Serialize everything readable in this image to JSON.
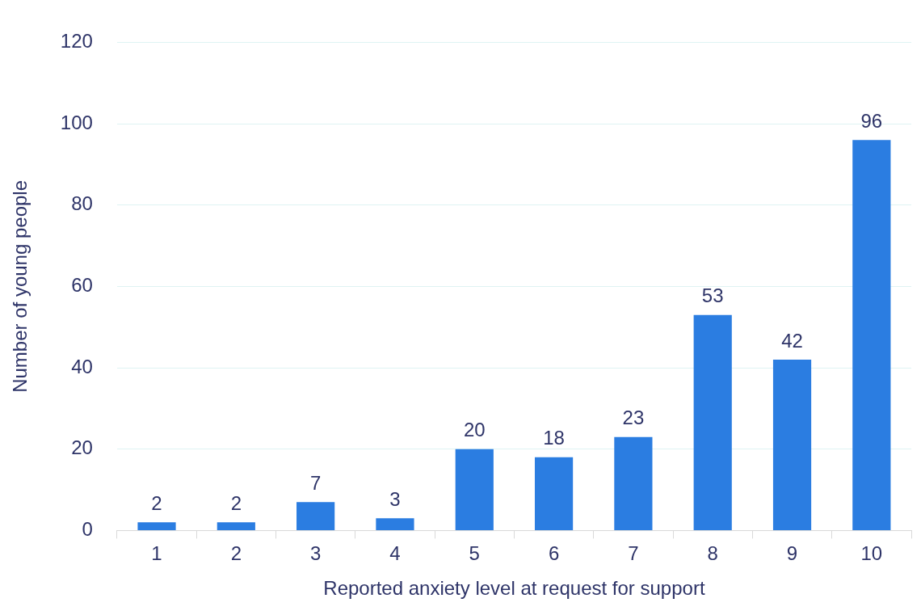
{
  "chart_data": {
    "type": "bar",
    "xlabel": "Reported anxiety level at request for support",
    "ylabel": "Number of young people",
    "categories": [
      "1",
      "2",
      "3",
      "4",
      "5",
      "6",
      "7",
      "8",
      "9",
      "10"
    ],
    "values": [
      2,
      2,
      7,
      3,
      20,
      18,
      23,
      53,
      42,
      96
    ],
    "color": "#2b7de1",
    "ylim": [
      0,
      120
    ],
    "yticks": [
      0,
      20,
      40,
      60,
      80,
      100,
      120
    ],
    "grid": "y",
    "data_labels": true
  }
}
